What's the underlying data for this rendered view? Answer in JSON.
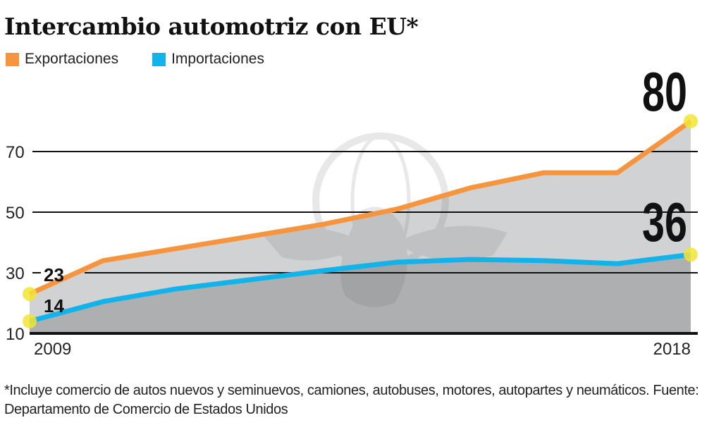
{
  "title": "Intercambio automotriz con EU*",
  "legend": [
    {
      "label": "Exportaciones",
      "color": "#f7953f"
    },
    {
      "label": "Importaciones",
      "color": "#12b3ea"
    }
  ],
  "footnote": "*Incluye comercio de autos nuevos y seminuevos, camiones, autobuses, motores, autopartes y neumáticos. Fuente: Departamento de Comercio de Estados Unidos",
  "chart_data": {
    "type": "area",
    "title": "Intercambio automotriz con EU*",
    "xlabel": "",
    "ylabel": "",
    "x": [
      2009,
      2010,
      2011,
      2012,
      2013,
      2014,
      2015,
      2016,
      2017,
      2018
    ],
    "x_tick_labels": [
      "2009",
      "2018"
    ],
    "y_ticks": [
      10,
      30,
      50,
      70
    ],
    "y_tick_labels": [
      "10",
      "30",
      "50",
      "70"
    ],
    "ylim": [
      10,
      80
    ],
    "grid": true,
    "legend_position": "top-left",
    "series": [
      {
        "name": "Exportaciones",
        "color": "#f7953f",
        "fill": "#d1d2d4",
        "values": [
          23,
          34,
          38,
          42,
          46,
          51,
          58,
          63,
          63,
          80
        ]
      },
      {
        "name": "Importaciones",
        "color": "#12b3ea",
        "fill": "#aeafb1",
        "values": [
          14,
          20.5,
          24.7,
          27.7,
          30.7,
          33.5,
          34.4,
          34,
          33,
          36
        ]
      }
    ],
    "annotations": [
      {
        "series": "Exportaciones",
        "x": 2009,
        "label": "23"
      },
      {
        "series": "Importaciones",
        "x": 2009,
        "label": "14"
      },
      {
        "series": "Exportaciones",
        "x": 2018,
        "label": "80"
      },
      {
        "series": "Importaciones",
        "x": 2018,
        "label": "36"
      }
    ],
    "highlight_color": "#f2e534"
  }
}
